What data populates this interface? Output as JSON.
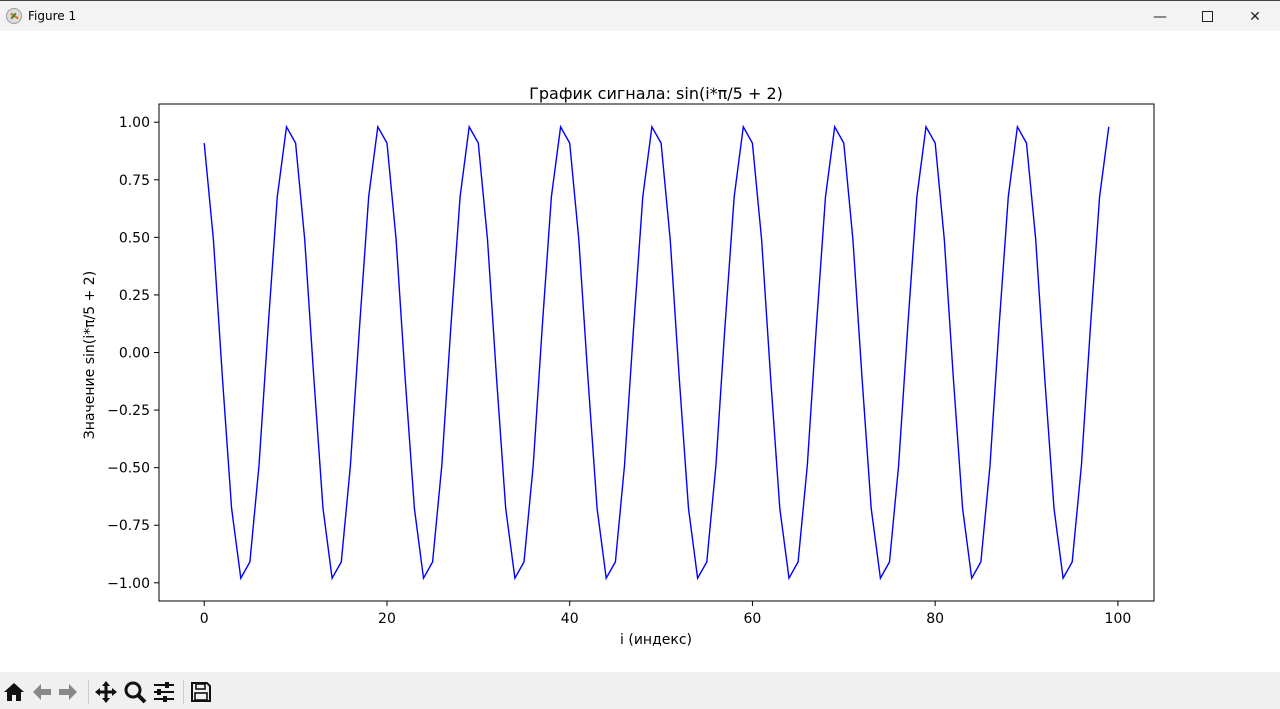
{
  "window": {
    "title": "Figure 1",
    "icon": "matplotlib-icon",
    "controls": [
      "minimize-icon",
      "maximize-icon",
      "close-icon"
    ]
  },
  "toolbar": {
    "buttons": [
      "home-icon",
      "back-icon",
      "forward-icon",
      "pan-icon",
      "zoom-icon",
      "configure-subplots-icon",
      "save-icon"
    ]
  },
  "chart_data": {
    "type": "line",
    "title": "График сигнала: sin(i*π/5 + 2)",
    "xlabel": "i (индекс)",
    "ylabel": "Значение sin(i*π/5 + 2)",
    "xlim": [
      -4.95,
      103.95
    ],
    "ylim": [
      -1.079,
      1.079
    ],
    "xticks": [
      0,
      20,
      40,
      60,
      80,
      100
    ],
    "xtick_labels": [
      "0",
      "20",
      "40",
      "60",
      "80",
      "100"
    ],
    "yticks": [
      1.0,
      0.75,
      0.5,
      0.25,
      0.0,
      -0.25,
      -0.5,
      -0.75,
      -1.0
    ],
    "ytick_labels": [
      "1.00",
      "0.75",
      "0.50",
      "0.25",
      "0.00",
      "−0.25",
      "−0.50",
      "−0.75",
      "−1.00"
    ],
    "grid": false,
    "color": "#0000ff",
    "x_start": 0,
    "values": [
      0.9093,
      0.491,
      -0.1148,
      -0.6768,
      -0.9802,
      -0.9093,
      -0.491,
      0.1148,
      0.6768,
      0.9802,
      0.9093,
      0.491,
      -0.1148,
      -0.6768,
      -0.9802,
      -0.9093,
      -0.491,
      0.1148,
      0.6768,
      0.9802,
      0.9093,
      0.491,
      -0.1148,
      -0.6768,
      -0.9802,
      -0.9093,
      -0.491,
      0.1148,
      0.6768,
      0.9802,
      0.9093,
      0.491,
      -0.1148,
      -0.6768,
      -0.9802,
      -0.9093,
      -0.491,
      0.1148,
      0.6768,
      0.9802,
      0.9093,
      0.491,
      -0.1148,
      -0.6768,
      -0.9802,
      -0.9093,
      -0.491,
      0.1148,
      0.6768,
      0.9802,
      0.9093,
      0.491,
      -0.1148,
      -0.6768,
      -0.9802,
      -0.9093,
      -0.491,
      0.1148,
      0.6768,
      0.9802,
      0.9093,
      0.491,
      -0.1148,
      -0.6768,
      -0.9802,
      -0.9093,
      -0.491,
      0.1148,
      0.6768,
      0.9802,
      0.9093,
      0.491,
      -0.1148,
      -0.6768,
      -0.9802,
      -0.9093,
      -0.491,
      0.1148,
      0.6768,
      0.9802,
      0.9093,
      0.491,
      -0.1148,
      -0.6768,
      -0.9802,
      -0.9093,
      -0.491,
      0.1148,
      0.6768,
      0.9802,
      0.9093,
      0.491,
      -0.1148,
      -0.6768,
      -0.9802,
      -0.9093,
      -0.491,
      0.1148,
      0.6768,
      0.9802
    ]
  }
}
